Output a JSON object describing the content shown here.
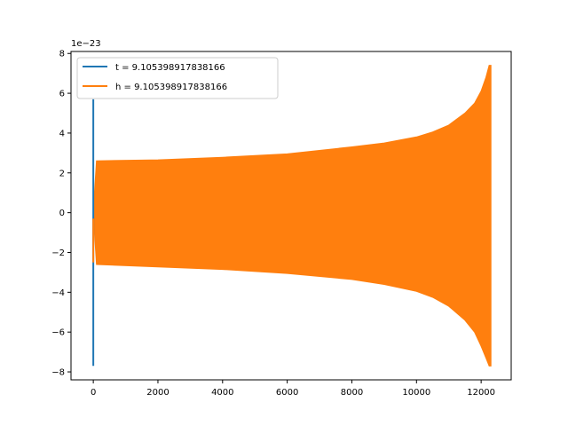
{
  "chart_data": {
    "type": "line",
    "title": "",
    "xlabel": "",
    "ylabel": "",
    "y_offset_label": "1e−23",
    "xlim": [
      -690,
      12930
    ],
    "ylim": [
      -8.4,
      8.1
    ],
    "xticks": [
      0,
      2000,
      4000,
      6000,
      8000,
      10000,
      12000
    ],
    "xtick_labels": [
      "0",
      "2000",
      "4000",
      "6000",
      "8000",
      "10000",
      "12000"
    ],
    "yticks": [
      -8,
      -6,
      -4,
      -2,
      0,
      2,
      4,
      6,
      8
    ],
    "ytick_labels": [
      "−8",
      "−6",
      "−4",
      "−2",
      "0",
      "2",
      "4",
      "6",
      "8"
    ],
    "grid": false,
    "legend_position": "top-left",
    "series": [
      {
        "name": "t = 9.105398917838166",
        "color": "#1f77b4",
        "description_points": [
          [
            0,
            5.7
          ],
          [
            0,
            -7.7
          ]
        ],
        "x": [
          0,
          0
        ],
        "y": [
          5.7,
          -7.7
        ]
      },
      {
        "name": "h = 9.105398917838166",
        "color": "#ff7f0e",
        "envelope": {
          "x": [
            0,
            100,
            2000,
            4000,
            6000,
            8000,
            9000,
            10000,
            10500,
            11000,
            11500,
            11800,
            12000,
            12150,
            12250,
            12300
          ],
          "upper": [
            0.0,
            2.6,
            2.65,
            2.78,
            2.95,
            3.3,
            3.5,
            3.8,
            4.05,
            4.4,
            5.0,
            5.5,
            6.1,
            6.8,
            7.4,
            7.4
          ],
          "lower": [
            0.0,
            -2.6,
            -2.72,
            -2.85,
            -3.05,
            -3.35,
            -3.6,
            -3.95,
            -4.25,
            -4.7,
            -5.4,
            -6.0,
            -6.7,
            -7.3,
            -7.7,
            -7.7
          ]
        }
      }
    ]
  }
}
